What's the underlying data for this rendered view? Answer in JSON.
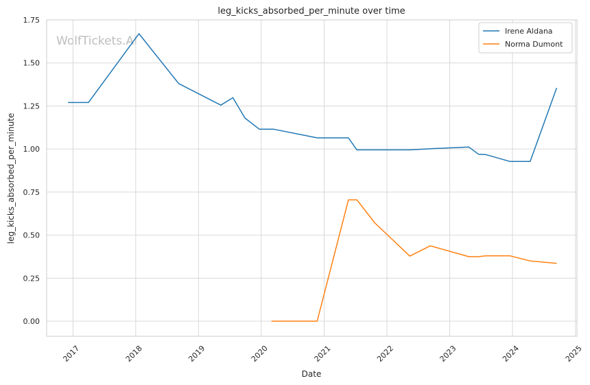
{
  "chart_data": {
    "type": "line",
    "title": "leg_kicks_absorbed_per_minute over time",
    "xlabel": "Date",
    "ylabel": "leg_kicks_absorbed_per_minute",
    "watermark": "WolfTickets.AI",
    "xlim": [
      "2016-08-01",
      "2025-01-10"
    ],
    "ylim": [
      -0.0875,
      1.75
    ],
    "x_ticks": [
      "2017",
      "2018",
      "2019",
      "2020",
      "2021",
      "2022",
      "2023",
      "2024",
      "2025"
    ],
    "y_ticks": [
      "0.00",
      "0.25",
      "0.50",
      "0.75",
      "1.00",
      "1.25",
      "1.50",
      "1.75"
    ],
    "grid": true,
    "legend_position": "top-right",
    "series": [
      {
        "name": "Irene Aldana",
        "color": "#1f77b4",
        "points": [
          [
            "2016-12-03",
            1.27
          ],
          [
            "2017-04-01",
            1.27
          ],
          [
            "2018-01-20",
            1.67
          ],
          [
            "2018-09-08",
            1.38
          ],
          [
            "2019-05-11",
            1.255
          ],
          [
            "2019-07-20",
            1.298
          ],
          [
            "2019-09-28",
            1.18
          ],
          [
            "2019-12-21",
            1.115
          ],
          [
            "2020-03-14",
            1.115
          ],
          [
            "2020-11-21",
            1.065
          ],
          [
            "2021-05-22",
            1.065
          ],
          [
            "2021-07-10",
            0.995
          ],
          [
            "2022-05-14",
            0.995
          ],
          [
            "2022-09-10",
            1.002
          ],
          [
            "2023-04-22",
            1.012
          ],
          [
            "2023-06-17",
            0.97
          ],
          [
            "2023-07-29",
            0.968
          ],
          [
            "2023-12-16",
            0.928
          ],
          [
            "2024-04-13",
            0.928
          ],
          [
            "2024-09-14",
            1.355
          ]
        ]
      },
      {
        "name": "Norma Dumont",
        "color": "#ff7f0e",
        "points": [
          [
            "2020-03-01",
            0.0
          ],
          [
            "2020-11-21",
            0.0
          ],
          [
            "2021-05-22",
            0.705
          ],
          [
            "2021-07-10",
            0.705
          ],
          [
            "2021-10-23",
            0.57
          ],
          [
            "2022-05-14",
            0.378
          ],
          [
            "2022-09-10",
            0.438
          ],
          [
            "2023-04-22",
            0.375
          ],
          [
            "2023-06-17",
            0.375
          ],
          [
            "2023-07-29",
            0.38
          ],
          [
            "2023-12-16",
            0.38
          ],
          [
            "2024-04-13",
            0.35
          ],
          [
            "2024-09-14",
            0.336
          ]
        ]
      }
    ]
  }
}
